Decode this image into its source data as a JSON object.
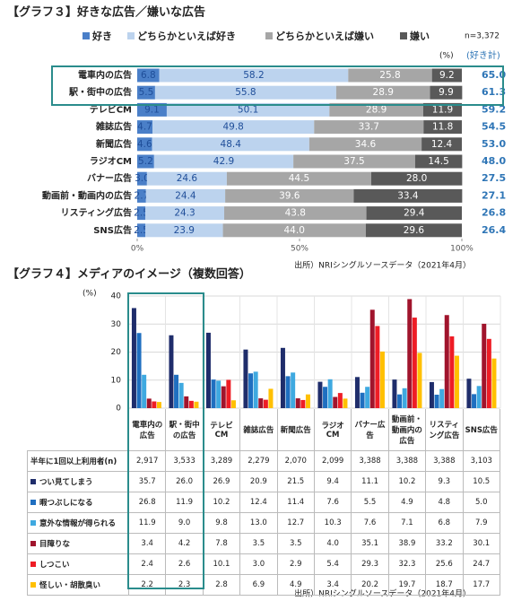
{
  "chart_data": [
    {
      "type": "bar",
      "orientation": "horizontal",
      "stacked": true,
      "title": "【グラフ３】好きな広告／嫌いな広告",
      "note": "n=3,372",
      "unit": "(%)",
      "categories": [
        "電車内の広告",
        "駅・街中の広告",
        "テレビCM",
        "雑誌広告",
        "新聞広告",
        "ラジオCM",
        "バナー広告",
        "動画前・動画内の広告",
        "リスティング広告",
        "SNS広告"
      ],
      "series": [
        {
          "name": "好き",
          "color": "#4a7fc8",
          "values": [
            6.8,
            5.5,
            9.1,
            4.7,
            4.6,
            5.2,
            3.0,
            2.7,
            2.5,
            2.5
          ],
          "value_labels": [
            "6.8",
            "5.5",
            "9.1",
            "4.7",
            "4.6",
            "5.2",
            "3.0",
            "2.7",
            "2.5",
            "2.5"
          ]
        },
        {
          "name": "どちらかといえば好き",
          "color": "#bcd3ee",
          "values": [
            58.2,
            55.8,
            50.1,
            49.8,
            48.4,
            42.9,
            24.6,
            24.4,
            24.3,
            23.9
          ],
          "value_labels": [
            "58.2",
            "55.8",
            "50.1",
            "49.8",
            "48.4",
            "42.9",
            "24.6",
            "24.4",
            "24.3",
            "23.9"
          ]
        },
        {
          "name": "どちらかといえば嫌い",
          "color": "#a6a6a6",
          "values": [
            25.8,
            28.9,
            28.9,
            33.7,
            34.6,
            37.5,
            44.5,
            39.6,
            43.8,
            44.0
          ],
          "value_labels": [
            "25.8",
            "28.9",
            "28.9",
            "33.7",
            "34.6",
            "37.5",
            "44.5",
            "39.6",
            "43.8",
            "44.0"
          ]
        },
        {
          "name": "嫌い",
          "color": "#595959",
          "values": [
            9.2,
            9.9,
            11.9,
            11.8,
            12.4,
            14.5,
            28.0,
            33.4,
            29.4,
            29.6
          ],
          "value_labels": [
            "9.2",
            "9.9",
            "11.9",
            "11.8",
            "12.4",
            "14.5",
            "28.0",
            "33.4",
            "29.4",
            "29.6"
          ]
        }
      ],
      "totals": {
        "name": "(好き計)",
        "color": "#2e75b6",
        "values": [
          65.0,
          61.3,
          59.2,
          54.5,
          53.0,
          48.0,
          27.5,
          27.1,
          26.8,
          26.4
        ],
        "value_labels": [
          "65.0",
          "61.3",
          "59.2",
          "54.5",
          "53.0",
          "48.0",
          "27.5",
          "27.1",
          "26.8",
          "26.4"
        ]
      },
      "xlim": [
        0,
        100
      ],
      "xticks": [
        {
          "value": 0,
          "label": "0%"
        },
        {
          "value": 50,
          "label": "50%"
        },
        {
          "value": 100,
          "label": "100%"
        }
      ],
      "source": "出所）NRIシングルソースデータ（2021年4月）"
    },
    {
      "type": "bar",
      "title": "【グラフ４】メディアのイメージ（複数回答）",
      "unit": "(%)",
      "categories": [
        "電車内の広告",
        "駅・街中の広告",
        "テレビCM",
        "雑誌広告",
        "新聞広告",
        "ラジオCM",
        "バナー広告",
        "動画前・動画内の広告",
        "リスティング広告",
        "SNS広告"
      ],
      "n": {
        "name": "半年に1回以上利用者(n)",
        "values": [
          2917,
          3533,
          3289,
          2279,
          2070,
          2099,
          3388,
          3388,
          3388,
          3103
        ],
        "value_labels": [
          "2,917",
          "3,533",
          "3,289",
          "2,279",
          "2,070",
          "2,099",
          "3,388",
          "3,388",
          "3,388",
          "3,103"
        ]
      },
      "series": [
        {
          "name": "つい見てしまう",
          "color": "#1f2d6b",
          "values": [
            35.7,
            26.0,
            26.9,
            20.9,
            21.5,
            9.4,
            11.1,
            10.2,
            9.3,
            10.5
          ],
          "value_labels": [
            "35.7",
            "26.0",
            "26.9",
            "20.9",
            "21.5",
            "9.4",
            "11.1",
            "10.2",
            "9.3",
            "10.5"
          ]
        },
        {
          "name": "暇つぶしになる",
          "color": "#1f6fc0",
          "values": [
            26.8,
            11.9,
            10.2,
            12.4,
            11.4,
            7.6,
            5.5,
            4.9,
            4.8,
            5.0
          ],
          "value_labels": [
            "26.8",
            "11.9",
            "10.2",
            "12.4",
            "11.4",
            "7.6",
            "5.5",
            "4.9",
            "4.8",
            "5.0"
          ]
        },
        {
          "name": "意外な情報が得られる",
          "color": "#3fa9e0",
          "values": [
            11.9,
            9.0,
            9.8,
            13.0,
            12.7,
            10.3,
            7.6,
            7.1,
            6.8,
            7.9
          ],
          "value_labels": [
            "11.9",
            "9.0",
            "9.8",
            "13.0",
            "12.7",
            "10.3",
            "7.6",
            "7.1",
            "6.8",
            "7.9"
          ]
        },
        {
          "name": "目障りな",
          "color": "#a0142c",
          "values": [
            3.4,
            4.2,
            7.8,
            3.5,
            3.5,
            4.0,
            35.1,
            38.9,
            33.2,
            30.1
          ],
          "value_labels": [
            "3.4",
            "4.2",
            "7.8",
            "3.5",
            "3.5",
            "4.0",
            "35.1",
            "38.9",
            "33.2",
            "30.1"
          ]
        },
        {
          "name": "しつこい",
          "color": "#ee1c25",
          "values": [
            2.4,
            2.6,
            10.1,
            3.0,
            2.9,
            5.4,
            29.3,
            32.3,
            25.6,
            24.7
          ],
          "value_labels": [
            "2.4",
            "2.6",
            "10.1",
            "3.0",
            "2.9",
            "5.4",
            "29.3",
            "32.3",
            "25.6",
            "24.7"
          ]
        },
        {
          "name": "怪しい・胡散臭い",
          "color": "#ffc000",
          "values": [
            2.2,
            2.3,
            2.8,
            6.9,
            4.9,
            3.4,
            20.2,
            19.7,
            18.7,
            17.7
          ],
          "value_labels": [
            "2.2",
            "2.3",
            "2.8",
            "6.9",
            "4.9",
            "3.4",
            "20.2",
            "19.7",
            "18.7",
            "17.7"
          ]
        }
      ],
      "ylim": [
        0,
        40
      ],
      "yticks": [
        0,
        10,
        20,
        30,
        40
      ],
      "grid": true,
      "source": "出所）NRIシングルソースデータ（2021年4月）"
    }
  ]
}
